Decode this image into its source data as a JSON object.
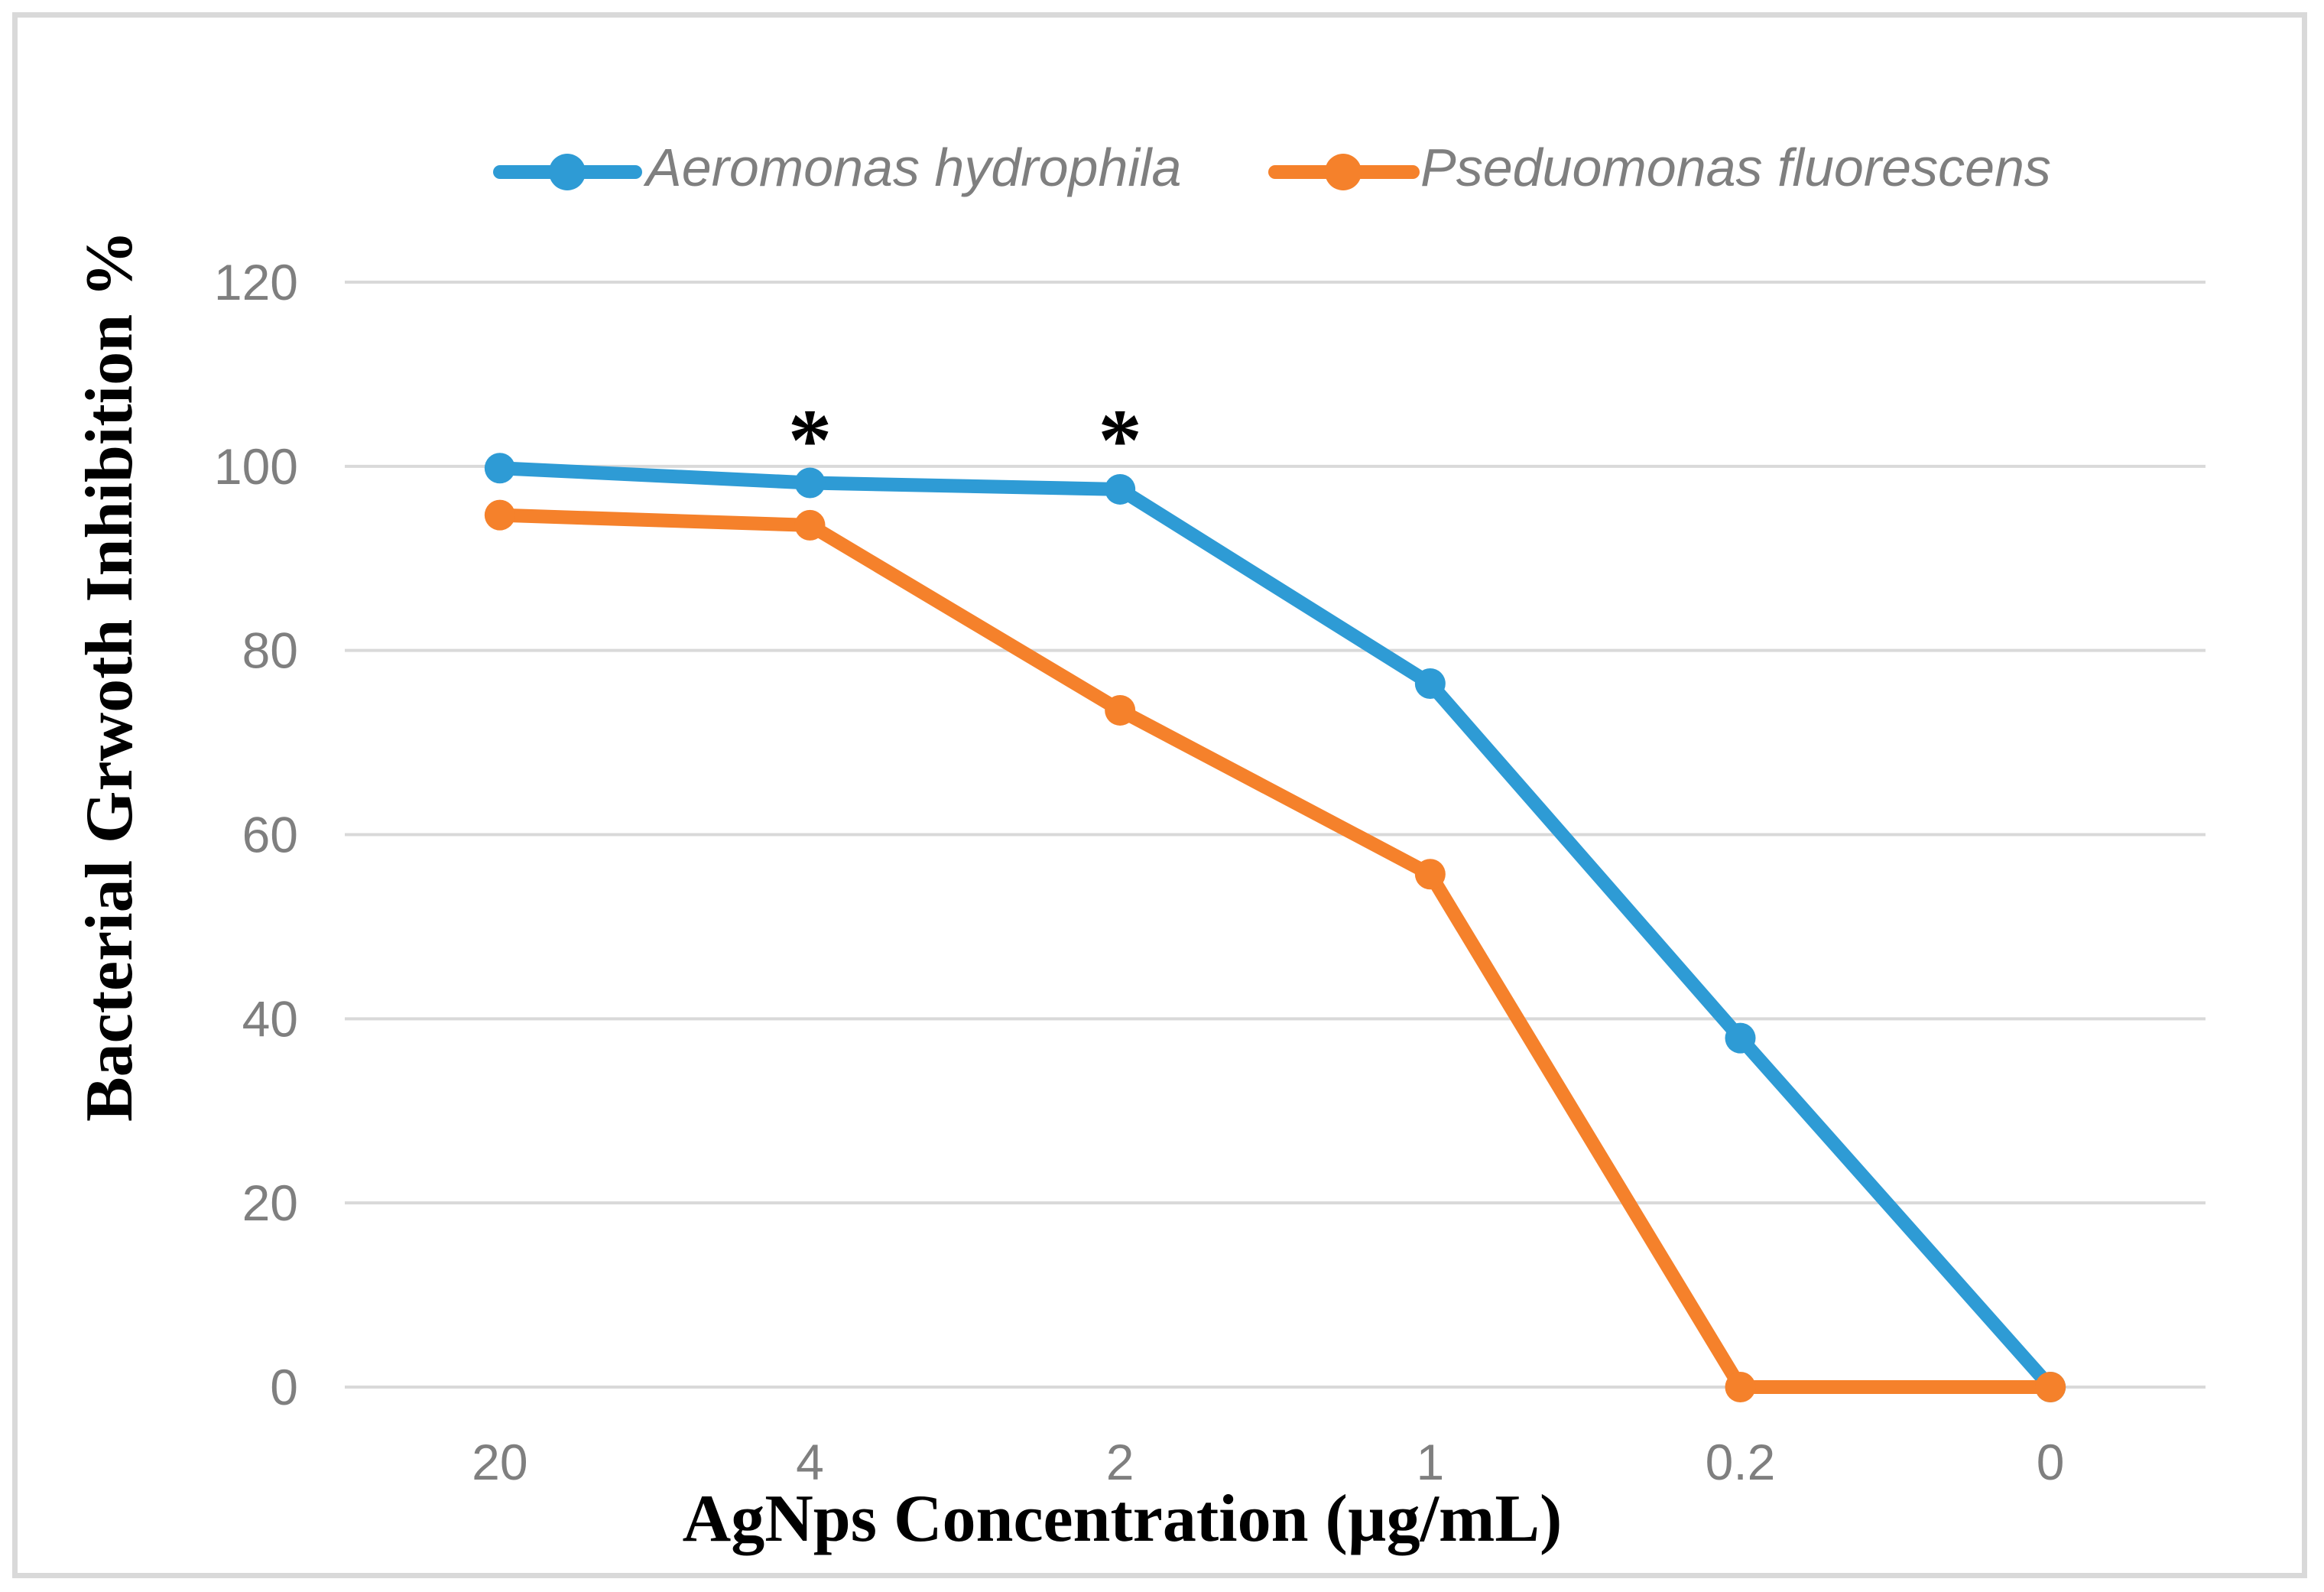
{
  "figure": {
    "background": "#FFFFFF",
    "border_color": "#D9D9D9"
  },
  "chart_data": {
    "type": "line",
    "title": "",
    "categories": [
      "20",
      "4",
      "2",
      "1",
      "0.2",
      "0"
    ],
    "xlabel": "AgNps Concentration (µg/mL)",
    "ylabel": "Bacterial Grwoth Inhibition %",
    "ylim": [
      0,
      120
    ],
    "yticks": [
      120,
      100,
      80,
      60,
      40,
      20,
      0
    ],
    "grid": "horizontal",
    "gridline_color": "#D9D9D9",
    "tick_color": "#7F7F7F",
    "legend_position": "top",
    "marker": "circle",
    "series": [
      {
        "name": "Aeromonas hydrophila",
        "color": "#2E9BD5",
        "values": [
          99.8,
          98.2,
          97.5,
          76.4,
          37.9,
          0
        ]
      },
      {
        "name": "Pseduomonas fluorescens",
        "color": "#F5812B",
        "values": [
          94.7,
          93.6,
          73.5,
          55.7,
          0,
          0
        ]
      }
    ],
    "annotations": [
      {
        "text": "*",
        "category": "4",
        "category_index": 1
      },
      {
        "text": "*",
        "category": "2",
        "category_index": 2
      }
    ]
  }
}
